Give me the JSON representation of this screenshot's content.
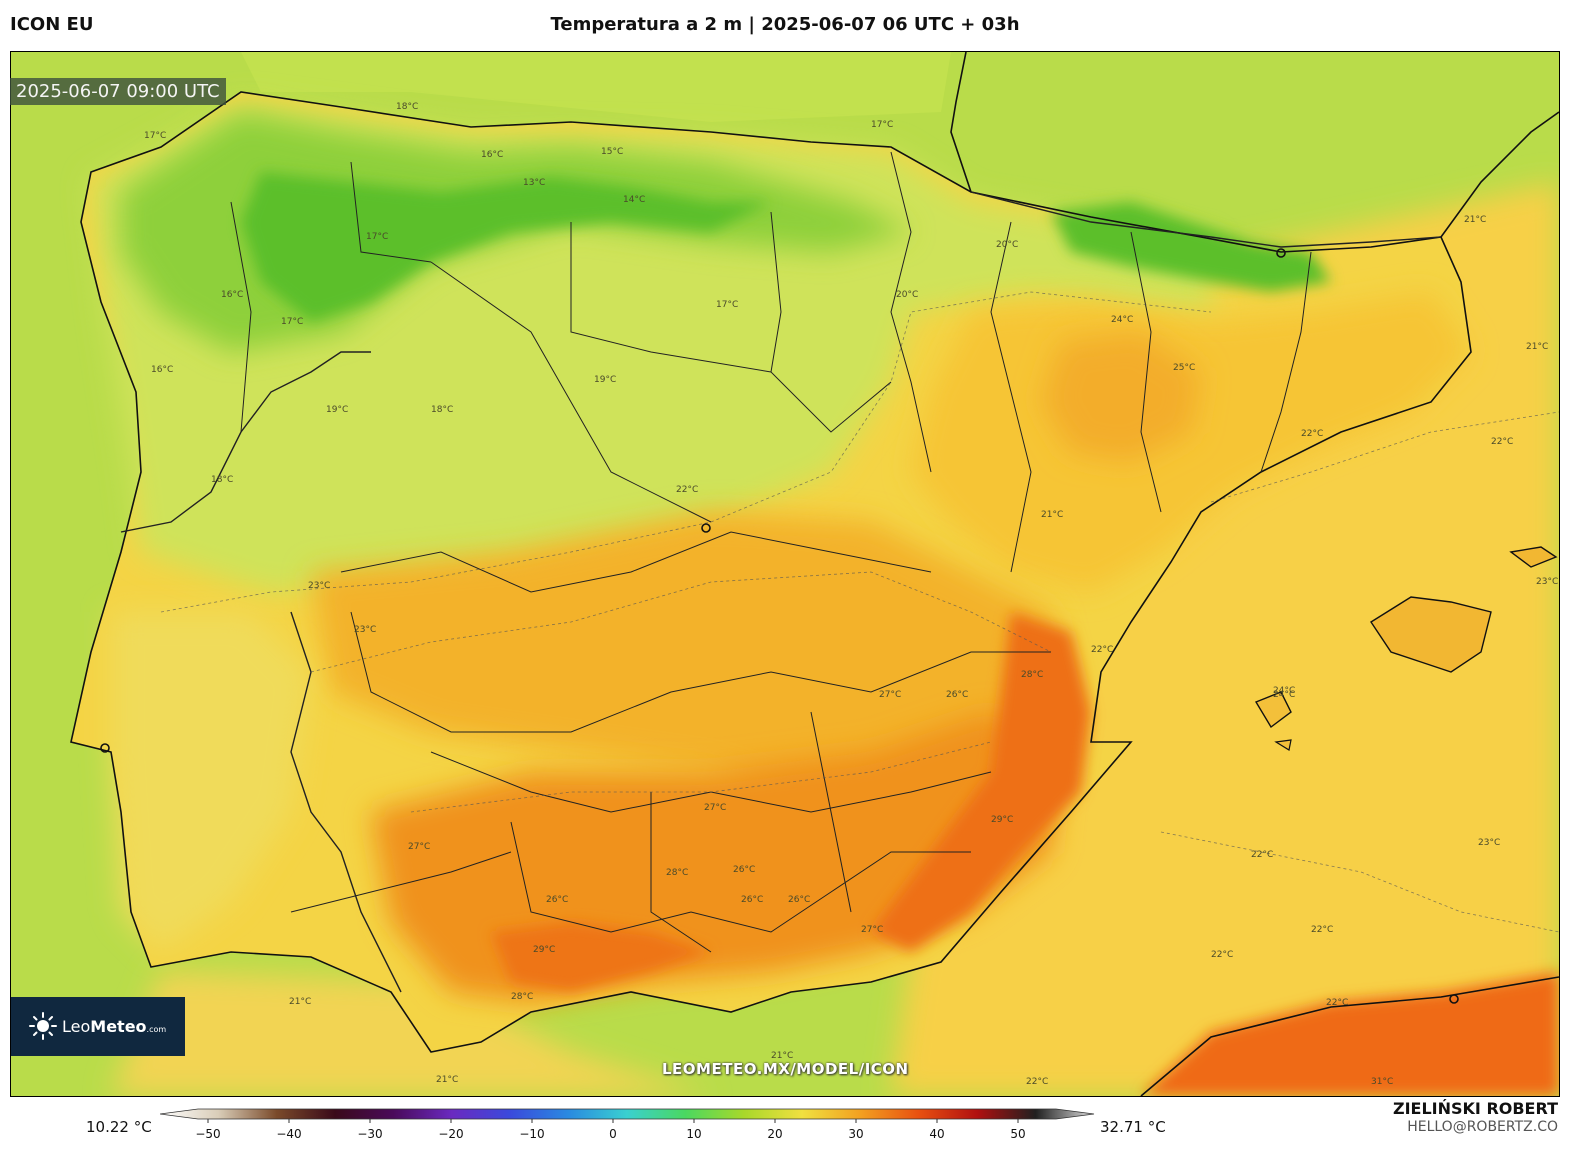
{
  "header": {
    "model": "ICON EU",
    "title": "Temperatura a 2 m | 2025-06-07 06 UTC + 03h"
  },
  "map": {
    "valid_time": "2025-06-07 09:00 UTC",
    "watermark": "LEOMETEO.MX/MODEL/ICON",
    "contour_labels": [
      "18°C",
      "17°C",
      "16°C",
      "15°C",
      "14°C",
      "13°C",
      "17°C",
      "19°C",
      "18°C",
      "19°C",
      "18°C",
      "17°C",
      "17°C",
      "16°C",
      "16°C",
      "17°C",
      "20°C",
      "22°C",
      "24°C",
      "25°C",
      "21°C",
      "21°C",
      "22°C",
      "22°C",
      "23°C",
      "23°C",
      "23°C",
      "24°C",
      "26°C",
      "27°C",
      "27°C",
      "28°C",
      "29°C",
      "26°C",
      "28°C",
      "26°C",
      "27°C",
      "26°C",
      "26°C",
      "29°C",
      "28°C",
      "27°C",
      "23°C",
      "22°C",
      "22°C",
      "22°C",
      "22°C",
      "22°C",
      "21°C",
      "21°C",
      "21°C",
      "31°C",
      "24°C",
      "22°C",
      "21°C",
      "20°C"
    ],
    "colors": {
      "ocean_atlantic": "#b9dc4a",
      "ocean_med": "#f7d046",
      "cool_green": "#6dc62d",
      "mild_yellowgreen": "#cfe35a",
      "warm_yellow": "#f5cf3e",
      "hot_orange": "#f29a22",
      "very_hot": "#ef6a12"
    }
  },
  "logo": {
    "brand": "LeoMeteo",
    "brand_light": "Leo",
    "brand_bold": "Meteo",
    "suffix": ".com",
    "icon": "sun-icon"
  },
  "colorbar": {
    "min_value": "10.22 °C",
    "max_value": "32.71 °C",
    "ticks": [
      "−50",
      "−40",
      "−30",
      "−20",
      "−10",
      "0",
      "10",
      "20",
      "30",
      "40",
      "50"
    ],
    "stops": [
      "#ffffff",
      "#d9cdb8",
      "#7a4a2a",
      "#3a0a1a",
      "#4a0a5a",
      "#6a2ac0",
      "#3a4adc",
      "#2a8ae0",
      "#3ad0d0",
      "#4ad860",
      "#a8d82a",
      "#f0e040",
      "#f2a020",
      "#e85010",
      "#b01010",
      "#202020",
      "#e0e0e0"
    ]
  },
  "credits": {
    "author": "ZIELIŃSKI ROBERT",
    "email": "HELLO@ROBERTZ.CO"
  }
}
